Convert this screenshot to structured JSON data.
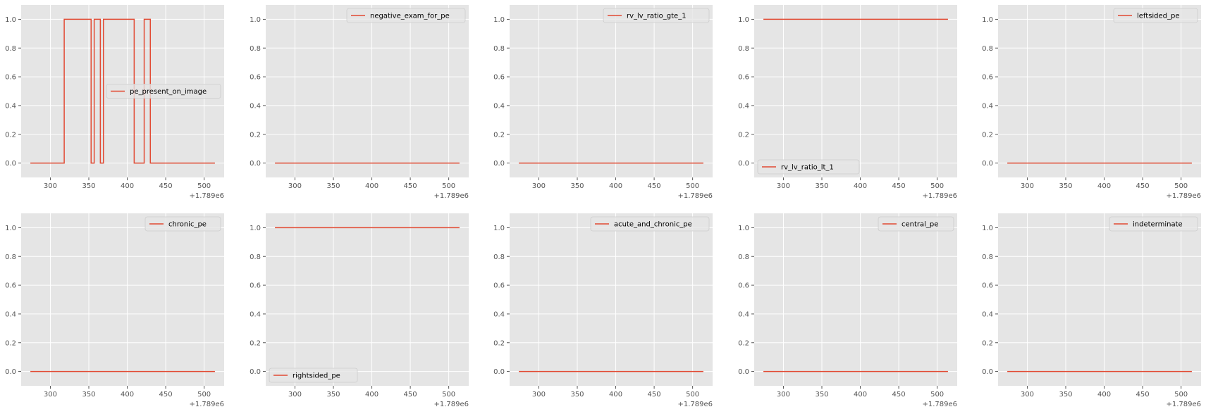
{
  "figure": {
    "background": "#ffffff",
    "axes_facecolor": "#e5e5e5",
    "grid_color": "#ffffff",
    "line_color": "#e24a33",
    "tick_color": "#555555"
  },
  "chart_data": [
    {
      "type": "line",
      "series": [
        {
          "name": "pe_present_on_image",
          "x": [
            274,
            318,
            318,
            353,
            353,
            357,
            357,
            365,
            365,
            369,
            369,
            409,
            409,
            422,
            422,
            430,
            430,
            514
          ],
          "y": [
            0,
            0,
            1,
            1,
            0,
            0,
            1,
            1,
            0,
            0,
            1,
            1,
            0,
            0,
            1,
            1,
            0,
            0
          ]
        }
      ],
      "xlim": [
        262,
        526
      ],
      "ylim": [
        -0.1,
        1.1
      ],
      "xticks": [
        300,
        350,
        400,
        450,
        500
      ],
      "yticks": [
        0.0,
        0.2,
        0.4,
        0.6,
        0.8,
        1.0
      ],
      "x_offset_label": "+1.789e6",
      "grid": true,
      "legend_position": "center-right"
    },
    {
      "type": "line",
      "series": [
        {
          "name": "negative_exam_for_pe",
          "x": [
            274,
            514
          ],
          "y": [
            0,
            0
          ]
        }
      ],
      "xlim": [
        262,
        526
      ],
      "ylim": [
        -0.1,
        1.1
      ],
      "xticks": [
        300,
        350,
        400,
        450,
        500
      ],
      "yticks": [
        0.0,
        0.2,
        0.4,
        0.6,
        0.8,
        1.0
      ],
      "x_offset_label": "+1.789e6",
      "grid": true,
      "legend_position": "top-right"
    },
    {
      "type": "line",
      "series": [
        {
          "name": "rv_lv_ratio_gte_1",
          "x": [
            274,
            514
          ],
          "y": [
            0,
            0
          ]
        }
      ],
      "xlim": [
        262,
        526
      ],
      "ylim": [
        -0.1,
        1.1
      ],
      "xticks": [
        300,
        350,
        400,
        450,
        500
      ],
      "yticks": [
        0.0,
        0.2,
        0.4,
        0.6,
        0.8,
        1.0
      ],
      "x_offset_label": "+1.789e6",
      "grid": true,
      "legend_position": "top-right"
    },
    {
      "type": "line",
      "series": [
        {
          "name": "rv_lv_ratio_lt_1",
          "x": [
            274,
            514
          ],
          "y": [
            1,
            1
          ]
        }
      ],
      "xlim": [
        262,
        526
      ],
      "ylim": [
        -0.1,
        1.1
      ],
      "xticks": [
        300,
        350,
        400,
        450,
        500
      ],
      "yticks": [
        0.0,
        0.2,
        0.4,
        0.6,
        0.8,
        1.0
      ],
      "x_offset_label": "+1.789e6",
      "grid": true,
      "legend_position": "bottom-left"
    },
    {
      "type": "line",
      "series": [
        {
          "name": "leftsided_pe",
          "x": [
            274,
            514
          ],
          "y": [
            0,
            0
          ]
        }
      ],
      "xlim": [
        262,
        526
      ],
      "ylim": [
        -0.1,
        1.1
      ],
      "xticks": [
        300,
        350,
        400,
        450,
        500
      ],
      "yticks": [
        0.0,
        0.2,
        0.4,
        0.6,
        0.8,
        1.0
      ],
      "x_offset_label": "+1.789e6",
      "grid": true,
      "legend_position": "top-right"
    },
    {
      "type": "line",
      "series": [
        {
          "name": "chronic_pe",
          "x": [
            274,
            514
          ],
          "y": [
            0,
            0
          ]
        }
      ],
      "xlim": [
        262,
        526
      ],
      "ylim": [
        -0.1,
        1.1
      ],
      "xticks": [
        300,
        350,
        400,
        450,
        500
      ],
      "yticks": [
        0.0,
        0.2,
        0.4,
        0.6,
        0.8,
        1.0
      ],
      "x_offset_label": "+1.789e6",
      "grid": true,
      "legend_position": "top-right"
    },
    {
      "type": "line",
      "series": [
        {
          "name": "rightsided_pe",
          "x": [
            274,
            514
          ],
          "y": [
            1,
            1
          ]
        }
      ],
      "xlim": [
        262,
        526
      ],
      "ylim": [
        -0.1,
        1.1
      ],
      "xticks": [
        300,
        350,
        400,
        450,
        500
      ],
      "yticks": [
        0.0,
        0.2,
        0.4,
        0.6,
        0.8,
        1.0
      ],
      "x_offset_label": "+1.789e6",
      "grid": true,
      "legend_position": "bottom-left"
    },
    {
      "type": "line",
      "series": [
        {
          "name": "acute_and_chronic_pe",
          "x": [
            274,
            514
          ],
          "y": [
            0,
            0
          ]
        }
      ],
      "xlim": [
        262,
        526
      ],
      "ylim": [
        -0.1,
        1.1
      ],
      "xticks": [
        300,
        350,
        400,
        450,
        500
      ],
      "yticks": [
        0.0,
        0.2,
        0.4,
        0.6,
        0.8,
        1.0
      ],
      "x_offset_label": "+1.789e6",
      "grid": true,
      "legend_position": "top-right"
    },
    {
      "type": "line",
      "series": [
        {
          "name": "central_pe",
          "x": [
            274,
            514
          ],
          "y": [
            0,
            0
          ]
        }
      ],
      "xlim": [
        262,
        526
      ],
      "ylim": [
        -0.1,
        1.1
      ],
      "xticks": [
        300,
        350,
        400,
        450,
        500
      ],
      "yticks": [
        0.0,
        0.2,
        0.4,
        0.6,
        0.8,
        1.0
      ],
      "x_offset_label": "+1.789e6",
      "grid": true,
      "legend_position": "top-right"
    },
    {
      "type": "line",
      "series": [
        {
          "name": "indeterminate",
          "x": [
            274,
            514
          ],
          "y": [
            0,
            0
          ]
        }
      ],
      "xlim": [
        262,
        526
      ],
      "ylim": [
        -0.1,
        1.1
      ],
      "xticks": [
        300,
        350,
        400,
        450,
        500
      ],
      "yticks": [
        0.0,
        0.2,
        0.4,
        0.6,
        0.8,
        1.0
      ],
      "x_offset_label": "+1.789e6",
      "grid": true,
      "legend_position": "top-right"
    }
  ]
}
